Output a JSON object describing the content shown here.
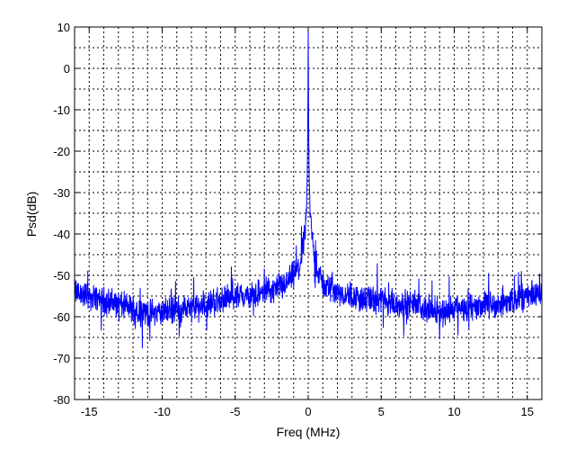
{
  "chart_data": {
    "type": "line",
    "title": "",
    "xlabel": "Freq (MHz)",
    "ylabel": "Psd(dB)",
    "xlim": [
      -16,
      16
    ],
    "ylim": [
      -80,
      10
    ],
    "xticks": [
      -15,
      -10,
      -5,
      0,
      5,
      10,
      15
    ],
    "yticks": [
      10,
      0,
      -10,
      -20,
      -30,
      -40,
      -50,
      -60,
      -70,
      -80
    ],
    "x_minor_step": 1,
    "y_minor_step": 5,
    "grid": true,
    "grid_style": "dotted",
    "legend": "none",
    "line_color": "#0000ff",
    "series": [
      {
        "x": [
          -16,
          -15,
          -14,
          -13,
          -12,
          -11,
          -10,
          -9,
          -8,
          -7,
          -6,
          -5,
          -4,
          -3,
          -2,
          -1.5,
          -1,
          -0.6,
          -0.4,
          -0.25,
          -0.15,
          -0.08,
          -0.03,
          0,
          0.03,
          0.08,
          0.15,
          0.25,
          0.4,
          0.6,
          1,
          1.5,
          2,
          3,
          4,
          5,
          6,
          7,
          8,
          9,
          10,
          11,
          12,
          13,
          14,
          15,
          16
        ],
        "values": [
          -54,
          -55,
          -56,
          -57,
          -58,
          -59,
          -59,
          -58,
          -58,
          -57,
          -56,
          -55,
          -55,
          -54,
          -53,
          -52,
          -50,
          -48,
          -44,
          -40,
          -36,
          -30,
          -15,
          9,
          -15,
          -30,
          -36,
          -40,
          -45,
          -49,
          -52,
          -53,
          -54,
          -55,
          -56,
          -56,
          -57,
          -57,
          -58,
          -59,
          -58,
          -58,
          -57,
          -57,
          -56,
          -55,
          -54
        ]
      }
    ]
  }
}
